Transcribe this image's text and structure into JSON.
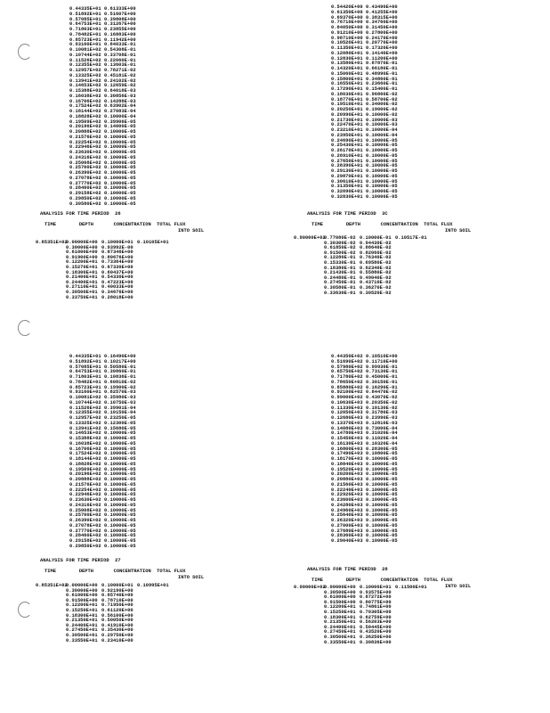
{
  "quadrants": [
    {
      "list": [
        [
          "0.44335E+01",
          "0.61333E+00"
        ],
        [
          "0.51892E+01",
          "0.51607E+00"
        ],
        [
          "0.57085E+01",
          "0.39808E+00"
        ],
        [
          "0.64753E+01",
          "0.31267E+00"
        ],
        [
          "0.71803E+01",
          "0.23855E+00"
        ],
        [
          "0.78482E+01",
          "0.16883E+00"
        ],
        [
          "0.85723E+01",
          "0.11942E+00"
        ],
        [
          "0.93160E+01",
          "0.84033E-01"
        ],
        [
          "0.10081E+02",
          "0.54308E-01"
        ],
        [
          "0.10744E+02",
          "0.33708E-01"
        ],
        [
          "0.11526E+02",
          "0.22060E-01"
        ],
        [
          "0.12355E+02",
          "0.13603E-01"
        ],
        [
          "0.12957E+02",
          "0.78271E-02"
        ],
        [
          "0.13325E+02",
          "0.45181E-02"
        ],
        [
          "0.13941E+02",
          "0.24102E-02"
        ],
        [
          "0.14653E+02",
          "0.12659E-02"
        ],
        [
          "0.15388E+02",
          "0.64018E-03"
        ],
        [
          "0.16038E+02",
          "0.30856E-03"
        ],
        [
          "0.16706E+02",
          "0.14288E-03"
        ],
        [
          "0.17524E+02",
          "0.63902E-04"
        ],
        [
          "0.18144E+02",
          "0.27083E-04"
        ],
        [
          "0.18828E+02",
          "0.10000E-04"
        ],
        [
          "0.19509E+02",
          "0.39906E-05"
        ],
        [
          "0.20196E+02",
          "0.14000E-05"
        ],
        [
          "0.20888E+02",
          "0.10000E-05"
        ],
        [
          "0.21576E+02",
          "0.10000E-05"
        ],
        [
          "0.22254E+02",
          "0.10000E-05"
        ],
        [
          "0.22946E+02",
          "0.10000E-05"
        ],
        [
          "0.23630E+02",
          "0.10000E-05"
        ],
        [
          "0.24316E+02",
          "0.10000E-05"
        ],
        [
          "0.25008E+02",
          "0.10000E-05"
        ],
        [
          "0.25700E+02",
          "0.10000E-05"
        ],
        [
          "0.26390E+02",
          "0.10000E-05"
        ],
        [
          "0.27078E+02",
          "0.10000E-05"
        ],
        [
          "0.27770E+02",
          "0.10000E-05"
        ],
        [
          "0.28460E+02",
          "0.10000E-05"
        ],
        [
          "0.29158E+02",
          "0.10000E-05"
        ],
        [
          "0.29850E+02",
          "0.10000E-05"
        ],
        [
          "0.30580E+02",
          "0.10000E-05"
        ]
      ],
      "heading": "ANALYSIS FOR TIME PERIOD  26",
      "columns": "TIME        DEPTH       CONCENTRATION  TOTAL FLUX",
      "columns2": "INTO SOIL",
      "time": "0.85351E+02",
      "flux": "0.10105E+01",
      "rows": [
        [
          "0.00000E+00",
          "0.10000E+01"
        ],
        [
          "0.30000E+00",
          "0.93992E-00"
        ],
        [
          "0.61000E+00",
          "0.87346E+00"
        ],
        [
          "0.91900E+00",
          "0.80676E+00"
        ],
        [
          "0.12200E+01",
          "0.73364E+00"
        ],
        [
          "0.15270E+01",
          "0.67330E+00"
        ],
        [
          "0.18300E+01",
          "0.60437E+00"
        ],
        [
          "0.21400E+01",
          "0.54330E+00"
        ],
        [
          "0.24400E+01",
          "0.47223E+00"
        ],
        [
          "0.27110E+01",
          "0.40033E+00"
        ],
        [
          "0.30500E+01",
          "0.34676E+00"
        ],
        [
          "0.33750E+01",
          "0.28018E+00"
        ]
      ]
    },
    {
      "list": [
        [
          "0.54420E+00",
          "0.43490E+00"
        ],
        [
          "0.61350E+00",
          "0.41255E+00"
        ],
        [
          "0.69370E+00",
          "0.38315E+00"
        ],
        [
          "0.76710E+00",
          "0.34760E+00"
        ],
        [
          "0.84050E+00",
          "0.31450E+00"
        ],
        [
          "0.91210E+00",
          "0.27800E+00"
        ],
        [
          "0.98710E+00",
          "0.24170E+00"
        ],
        [
          "0.10520E+01",
          "0.20770E+00"
        ],
        [
          "0.11350E+01",
          "0.17320E+00"
        ],
        [
          "0.12080E+01",
          "0.14140E+00"
        ],
        [
          "0.12830E+01",
          "0.11200E+00"
        ],
        [
          "0.13580E+01",
          "0.87870E-01"
        ],
        [
          "0.14320E+01",
          "0.66180E-01"
        ],
        [
          "0.15060E+01",
          "0.48990E-01"
        ],
        [
          "0.15800E+01",
          "0.34860E-01"
        ],
        [
          "0.16550E+01",
          "0.23660E-01"
        ],
        [
          "0.17290E+01",
          "0.15400E-01"
        ],
        [
          "0.18030E+01",
          "0.96860E-02"
        ],
        [
          "0.18770E+01",
          "0.58700E-02"
        ],
        [
          "0.19510E+01",
          "0.34000E-02"
        ],
        [
          "0.20250E+01",
          "0.19000E-02"
        ],
        [
          "0.20990E+01",
          "0.10000E-02"
        ],
        [
          "0.21730E+01",
          "0.10000E-03"
        ],
        [
          "0.22470E+01",
          "0.10000E-03"
        ],
        [
          "0.23210E+01",
          "0.10000E-04"
        ],
        [
          "0.23950E+01",
          "0.10000E-04"
        ],
        [
          "0.24690E+01",
          "0.10000E-05"
        ],
        [
          "0.25430E+01",
          "0.10000E-05"
        ],
        [
          "0.26170E+01",
          "0.10000E-05"
        ],
        [
          "0.26910E+01",
          "0.10000E-05"
        ],
        [
          "0.27650E+01",
          "0.10000E-05"
        ],
        [
          "0.28390E+01",
          "0.10000E-05"
        ],
        [
          "0.29130E+01",
          "0.10000E-05"
        ],
        [
          "0.29870E+01",
          "0.10000E-05"
        ],
        [
          "0.30610E+01",
          "0.10000E-05"
        ],
        [
          "0.31350E+01",
          "0.10000E-05"
        ],
        [
          "0.32090E+01",
          "0.10000E-05"
        ],
        [
          "0.32830E+01",
          "0.10000E-05"
        ]
      ],
      "heading": "ANALYSIS FOR TIME PERIOD  3C",
      "columns": "TIME        DEPTH       CONCENTRATION  TOTAL FLUX",
      "columns2": "INTO SOIL",
      "time": "0.90000E+02",
      "flux": "0.10517E-01",
      "rows": [
        [
          "0.77080E-02",
          "0.10000E-01"
        ],
        [
          "0.30300E-02",
          "0.94430E-02"
        ],
        [
          "0.61850E-02",
          "0.88640E-02"
        ],
        [
          "0.91500E-02",
          "0.82060E-02"
        ],
        [
          "0.12280E-01",
          "0.76340E-02"
        ],
        [
          "0.15330E-01",
          "0.69580E-02"
        ],
        [
          "0.18380E-01",
          "0.62340E-02"
        ],
        [
          "0.21430E-01",
          "0.55880E-02"
        ],
        [
          "0.24480E-01",
          "0.49040E-02"
        ],
        [
          "0.27450E-01",
          "0.43710E-02"
        ],
        [
          "0.30580E-01",
          "0.36270E-02"
        ],
        [
          "0.33630E-01",
          "0.30520E-02"
        ]
      ]
    },
    {
      "list": [
        [
          "0.44335E+01",
          "0.16490E+00"
        ],
        [
          "0.51892E+01",
          "0.10217E+00"
        ],
        [
          "0.57085E+01",
          "0.50580E-01"
        ],
        [
          "0.64753E+01",
          "0.30860E-01"
        ],
        [
          "0.71803E+01",
          "0.10836E-01"
        ],
        [
          "0.78482E+01",
          "0.60810E-02"
        ],
        [
          "0.85723E+01",
          "0.19900E-02"
        ],
        [
          "0.93160E+01",
          "0.82570E-03"
        ],
        [
          "0.10081E+02",
          "0.35980E-03"
        ],
        [
          "0.10744E+02",
          "0.10750E-03"
        ],
        [
          "0.11526E+02",
          "0.39901E-04"
        ],
        [
          "0.12355E+02",
          "0.10150E-04"
        ],
        [
          "0.12957E+02",
          "0.23250E-05"
        ],
        [
          "0.13325E+02",
          "0.12300E-05"
        ],
        [
          "0.13941E+02",
          "0.15680E-05"
        ],
        [
          "0.14653E+02",
          "0.10000E-05"
        ],
        [
          "0.15388E+02",
          "0.10000E-05"
        ],
        [
          "0.16038E+02",
          "0.10000E-05"
        ],
        [
          "0.16706E+02",
          "0.10000E-05"
        ],
        [
          "0.17524E+02",
          "0.10000E-05"
        ],
        [
          "0.18144E+02",
          "0.10000E-05"
        ],
        [
          "0.18828E+02",
          "0.10000E-05"
        ],
        [
          "0.19509E+02",
          "0.10000E-05"
        ],
        [
          "0.20196E+02",
          "0.10000E-05"
        ],
        [
          "0.20888E+02",
          "0.10000E-05"
        ],
        [
          "0.21576E+02",
          "0.10000E-05"
        ],
        [
          "0.22254E+02",
          "0.10000E-05"
        ],
        [
          "0.22946E+02",
          "0.10000E-05"
        ],
        [
          "0.23630E+02",
          "0.10000E-05"
        ],
        [
          "0.24316E+02",
          "0.10000E-05"
        ],
        [
          "0.25008E+02",
          "0.10000E-05"
        ],
        [
          "0.25700E+02",
          "0.10000E-05"
        ],
        [
          "0.26390E+02",
          "0.10000E-05"
        ],
        [
          "0.27078E+02",
          "0.10000E-05"
        ],
        [
          "0.27770E+02",
          "0.10000E-05"
        ],
        [
          "0.28460E+02",
          "0.10000E-05"
        ],
        [
          "0.29158E+02",
          "0.10000E-05"
        ],
        [
          "0.29850E+02",
          "0.10000E-05"
        ]
      ],
      "heading": "ANALYSIS FOR TIME PERIOD  27",
      "columns": "TIME        DEPTH       CONCENTRATION  TOTAL FLUX",
      "columns2": "INTO SOIL",
      "time": "0.85351E+02",
      "flux": "0.10995E+01",
      "rows": [
        [
          "0.00000E+00",
          "0.10000E+01"
        ],
        [
          "0.30000E+00",
          "0.92190E+00"
        ],
        [
          "0.61000E+00",
          "0.85740E+00"
        ],
        [
          "0.91500E+00",
          "0.78710E+00"
        ],
        [
          "0.12200E+01",
          "0.71950E+00"
        ],
        [
          "0.15250E+01",
          "0.61120E+00"
        ],
        [
          "0.18300E+01",
          "0.56100E+00"
        ],
        [
          "0.21350E+01",
          "0.50050E+00"
        ],
        [
          "0.24400E+01",
          "0.41910E+00"
        ],
        [
          "0.27450E+01",
          "0.35430E+00"
        ],
        [
          "0.30500E+01",
          "0.29750E+00"
        ],
        [
          "0.33550E+01",
          "0.23410E+00"
        ]
      ]
    },
    {
      "list": [
        [
          "0.44350E+02",
          "0.10510E+00"
        ],
        [
          "0.51690E+02",
          "0.11710E+00"
        ],
        [
          "0.57980E+02",
          "0.99930E-01"
        ],
        [
          "0.65750E+02",
          "0.73130E-01"
        ],
        [
          "0.71780E+02",
          "0.45000E-01"
        ],
        [
          "0.78650E+02",
          "0.30150E-01"
        ],
        [
          "0.85880E+02",
          "0.16290E-01"
        ],
        [
          "0.92100E+02",
          "0.84470E-02"
        ],
        [
          "0.99000E+02",
          "0.43070E-02"
        ],
        [
          "0.10630E+03",
          "0.20350E-02"
        ],
        [
          "0.11330E+03",
          "0.10130E-02"
        ],
        [
          "0.12050E+03",
          "0.31780E-03"
        ],
        [
          "0.12680E+03",
          "0.23990E-03"
        ],
        [
          "0.13370E+03",
          "0.12810E-03"
        ],
        [
          "0.14080E+03",
          "0.73000E-04"
        ],
        [
          "0.14780E+03",
          "0.31020E-04"
        ],
        [
          "0.15450E+03",
          "0.11020E-04"
        ],
        [
          "0.16130E+03",
          "0.10320E-04"
        ],
        [
          "0.16800E+03",
          "0.28300E-05"
        ],
        [
          "0.17490E+03",
          "0.10800E-05"
        ],
        [
          "0.18170E+03",
          "0.10000E-05"
        ],
        [
          "0.18840E+03",
          "0.10000E-05"
        ],
        [
          "0.19520E+03",
          "0.10000E-05"
        ],
        [
          "0.20200E+03",
          "0.10000E-05"
        ],
        [
          "0.20880E+03",
          "0.10000E-05"
        ],
        [
          "0.21560E+03",
          "0.10000E-05"
        ],
        [
          "0.22240E+03",
          "0.10000E-05"
        ],
        [
          "0.22920E+03",
          "0.10000E-05"
        ],
        [
          "0.23600E+03",
          "0.10000E-05"
        ],
        [
          "0.24280E+03",
          "0.10000E-05"
        ],
        [
          "0.24960E+03",
          "0.10000E-05"
        ],
        [
          "0.25640E+03",
          "0.10000E-05"
        ],
        [
          "0.26320E+03",
          "0.10000E-05"
        ],
        [
          "0.27000E+03",
          "0.10000E-05"
        ],
        [
          "0.27680E+03",
          "0.10000E-05"
        ],
        [
          "0.28360E+03",
          "0.10000E-05"
        ],
        [
          "0.29040E+03",
          "0.10000E-05"
        ]
      ],
      "heading": "ANALYSIS FOR TIME PERIOD  28",
      "columns": "TIME        DEPTH       CONCENTRATION  TOTAL FLUX",
      "columns2": "INTO SOIL",
      "time": "0.90000E+02",
      "flux": "0.11500E+01",
      "rows": [
        [
          "0.00000E+00",
          "0.10000E+01"
        ],
        [
          "0.30500E+00",
          "0.93575E+00"
        ],
        [
          "0.61000E+00",
          "0.87272E+00"
        ],
        [
          "0.91500E+00",
          "0.80775E+00"
        ],
        [
          "0.12200E+01",
          "0.74861E+00"
        ],
        [
          "0.15250E+01",
          "0.70305E+00"
        ],
        [
          "0.18300E+01",
          "0.62759E+00"
        ],
        [
          "0.21350E+01",
          "0.56203E+00"
        ],
        [
          "0.24400E+01",
          "0.50445E+00"
        ],
        [
          "0.27450E+01",
          "0.43520E+00"
        ],
        [
          "0.30500E+01",
          "0.36250E+00"
        ],
        [
          "0.33550E+01",
          "0.30836E+00"
        ]
      ]
    }
  ]
}
